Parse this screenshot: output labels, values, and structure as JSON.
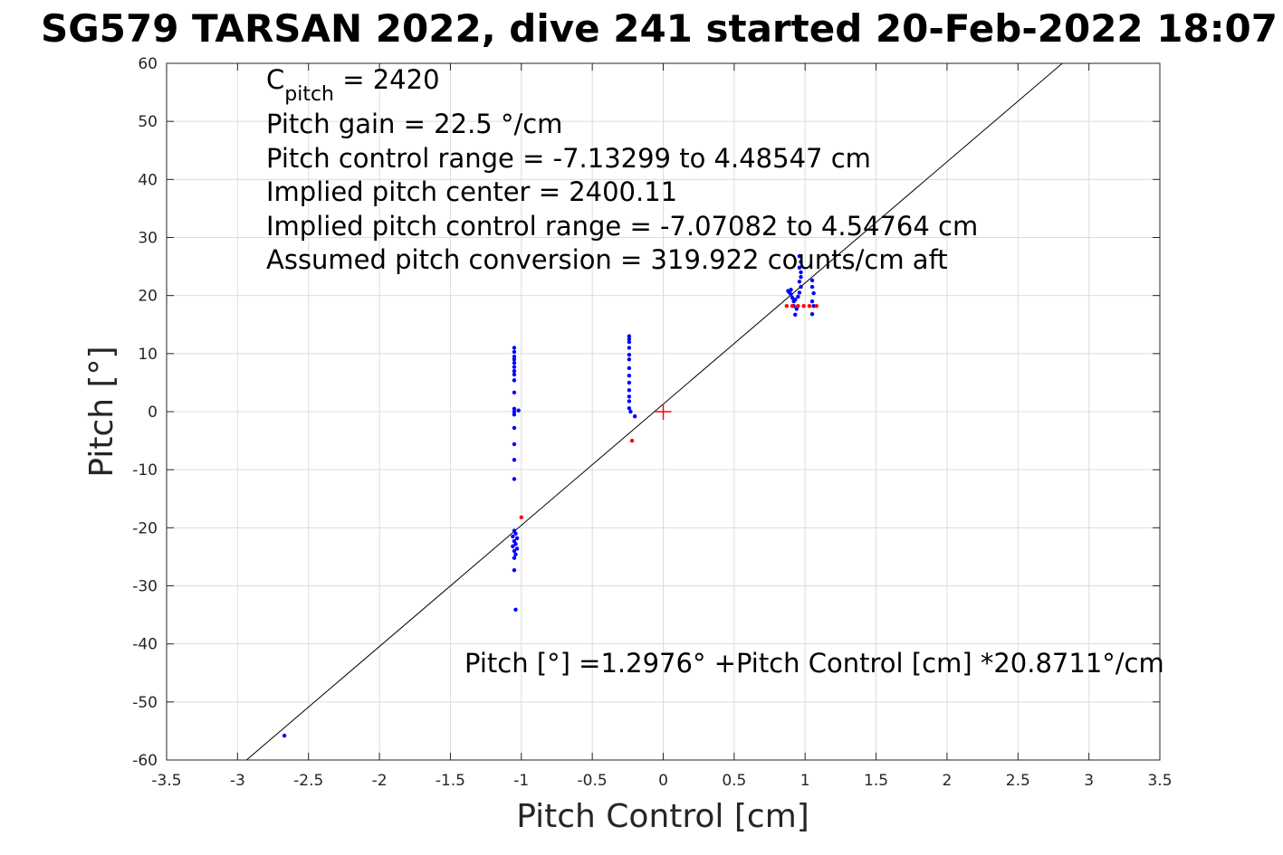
{
  "chart_data": {
    "type": "scatter",
    "title": "SG579 TARSAN 2022, dive 241 started 20-Feb-2022 18:07",
    "xlabel": "Pitch Control [cm]",
    "ylabel": "Pitch [°]",
    "xlim": [
      -3.5,
      3.5
    ],
    "ylim": [
      -60,
      60
    ],
    "xticks": [
      -3.5,
      -3,
      -2.5,
      -2,
      -1.5,
      -1,
      -0.5,
      0,
      0.5,
      1,
      1.5,
      2,
      2.5,
      3,
      3.5
    ],
    "xtick_labels": [
      "-3.5",
      "-3",
      "-2.5",
      "-2",
      "-1.5",
      "-1",
      "-0.5",
      "0",
      "0.5",
      "1",
      "1.5",
      "2",
      "2.5",
      "3",
      "3.5"
    ],
    "yticks": [
      -60,
      -50,
      -40,
      -30,
      -20,
      -10,
      0,
      10,
      20,
      30,
      40,
      50,
      60
    ],
    "ytick_labels": [
      "-60",
      "-50",
      "-40",
      "-30",
      "-20",
      "-10",
      "0",
      "10",
      "20",
      "30",
      "40",
      "50",
      "60"
    ],
    "grid": true,
    "colors": {
      "blue": "#0000ff",
      "red": "#ff0000",
      "fit": "#000000",
      "axis": "#262626"
    },
    "series": [
      {
        "color": "#0000ff",
        "points": [
          [
            -1.05,
            11
          ],
          [
            -1.05,
            10.3
          ],
          [
            -1.05,
            9.5
          ],
          [
            -1.05,
            9
          ],
          [
            -1.05,
            8.4
          ],
          [
            -1.05,
            7.7
          ],
          [
            -1.05,
            7
          ],
          [
            -1.05,
            6.4
          ],
          [
            -1.05,
            5.4
          ],
          [
            -1.05,
            3.3
          ],
          [
            -1.05,
            0.5
          ],
          [
            -1.05,
            0
          ],
          [
            -1.05,
            -0.5
          ],
          [
            -1.02,
            0.2
          ],
          [
            -1.05,
            -2.8
          ],
          [
            -1.05,
            -5.6
          ],
          [
            -1.05,
            -8.3
          ],
          [
            -1.05,
            -11.6
          ],
          [
            -1.05,
            -20.5
          ],
          [
            -1.04,
            -21
          ],
          [
            -1.06,
            -21.5
          ],
          [
            -1.03,
            -21.8
          ],
          [
            -1.05,
            -22.3
          ],
          [
            -1.04,
            -22.8
          ],
          [
            -1.06,
            -23.2
          ],
          [
            -1.03,
            -23.6
          ],
          [
            -1.05,
            -24
          ],
          [
            -1.04,
            -24.6
          ],
          [
            -1.05,
            -25.2
          ],
          [
            -1.05,
            -27.3
          ],
          [
            -1.04,
            -34.1
          ],
          [
            -0.24,
            13
          ],
          [
            -0.24,
            12.5
          ],
          [
            -0.24,
            12
          ],
          [
            -0.24,
            11
          ],
          [
            -0.24,
            9.8
          ],
          [
            -0.24,
            9
          ],
          [
            -0.24,
            7.5
          ],
          [
            -0.24,
            6.2
          ],
          [
            -0.24,
            5
          ],
          [
            -0.24,
            3.7
          ],
          [
            -0.24,
            2.6
          ],
          [
            -0.24,
            1.8
          ],
          [
            -0.24,
            0.6
          ],
          [
            -0.23,
            0
          ],
          [
            -0.2,
            -0.8
          ],
          [
            0.88,
            20.8
          ],
          [
            0.9,
            20.2
          ],
          [
            0.91,
            19.6
          ],
          [
            0.92,
            19
          ],
          [
            0.89,
            20.5
          ],
          [
            0.93,
            19.3
          ],
          [
            0.9,
            21
          ],
          [
            0.92,
            18.2
          ],
          [
            0.94,
            17.7
          ],
          [
            0.93,
            16.7
          ],
          [
            0.95,
            19.8
          ],
          [
            0.96,
            20.5
          ],
          [
            0.96,
            24.8
          ],
          [
            0.97,
            24
          ],
          [
            0.97,
            23.2
          ],
          [
            0.96,
            22.4
          ],
          [
            0.97,
            21.5
          ],
          [
            0.96,
            26.8
          ],
          [
            0.97,
            25.8
          ],
          [
            1.05,
            22.6
          ],
          [
            1.05,
            21.5
          ],
          [
            1.06,
            20.4
          ],
          [
            1.05,
            19
          ],
          [
            1.06,
            18.2
          ],
          [
            1.05,
            16.8
          ],
          [
            -2.67,
            -55.8
          ]
        ]
      },
      {
        "color": "#ff0000",
        "points": [
          [
            -1.0,
            -18.2
          ],
          [
            -0.22,
            -5
          ],
          [
            0.87,
            18.2
          ],
          [
            0.91,
            18.2
          ],
          [
            0.95,
            18.2
          ],
          [
            0.99,
            18.2
          ],
          [
            1.03,
            18.2
          ],
          [
            1.08,
            18.2
          ]
        ]
      }
    ],
    "fit_line": {
      "intercept": 1.2976,
      "slope": 20.8711
    },
    "center_marker": {
      "x": 0,
      "y": 0,
      "color": "#ff0000"
    },
    "annotations": {
      "cpitch_prefix": "C",
      "cpitch_sub": "pitch",
      "cpitch_value": " = 2420",
      "line2": "Pitch gain = 22.5 °/cm",
      "line3": "Pitch control range = -7.13299 to 4.48547 cm",
      "line4": "Implied pitch center = 2400.11",
      "line5": "Implied pitch control range = -7.07082 to 4.54764 cm",
      "line6": "Assumed pitch conversion = 319.922 counts/cm aft",
      "fit_text": "Pitch [°] =1.2976° +Pitch Control [cm] *20.8711°/cm"
    }
  }
}
